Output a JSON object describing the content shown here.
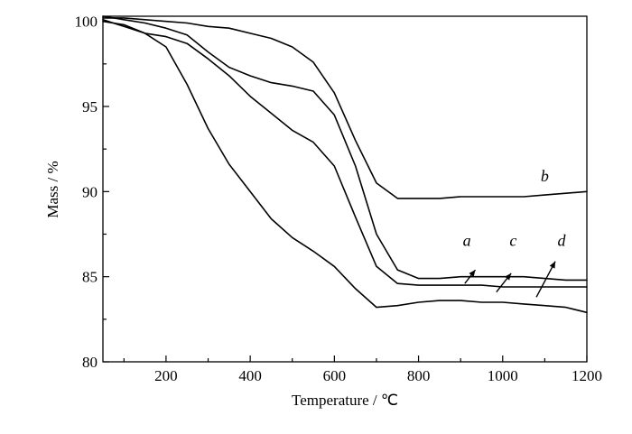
{
  "chart_data": {
    "type": "line",
    "title": "",
    "xlabel": "Temperature / ℃",
    "ylabel": "Mass / %",
    "xlim": [
      50,
      1200
    ],
    "ylim": [
      80,
      100.3
    ],
    "xticks": [
      200,
      400,
      600,
      800,
      1000,
      1200
    ],
    "yticks": [
      80,
      85,
      90,
      95,
      100
    ],
    "grid": false,
    "legend": "none",
    "series": [
      {
        "name": "a",
        "x": [
          50,
          100,
          150,
          200,
          250,
          300,
          350,
          400,
          450,
          500,
          550,
          600,
          650,
          700,
          750,
          800,
          850,
          900,
          950,
          1000,
          1050,
          1100,
          1150,
          1200
        ],
        "y": [
          100.3,
          100.1,
          99.9,
          99.6,
          99.2,
          98.2,
          97.3,
          96.8,
          96.4,
          96.2,
          95.9,
          94.5,
          91.5,
          87.5,
          85.4,
          84.9,
          84.9,
          85.0,
          85.0,
          85.0,
          85.0,
          84.9,
          84.8,
          84.8
        ]
      },
      {
        "name": "b",
        "x": [
          50,
          100,
          150,
          200,
          250,
          300,
          350,
          400,
          450,
          500,
          550,
          600,
          650,
          700,
          750,
          800,
          850,
          900,
          950,
          1000,
          1050,
          1100,
          1150,
          1200
        ],
        "y": [
          100.2,
          100.2,
          100.1,
          100.0,
          99.9,
          99.7,
          99.6,
          99.3,
          99.0,
          98.5,
          97.6,
          95.8,
          93.0,
          90.5,
          89.6,
          89.6,
          89.6,
          89.7,
          89.7,
          89.7,
          89.7,
          89.8,
          89.9,
          90.0
        ]
      },
      {
        "name": "c",
        "x": [
          50,
          100,
          150,
          200,
          250,
          300,
          350,
          400,
          450,
          500,
          550,
          600,
          650,
          700,
          750,
          800,
          850,
          900,
          950,
          1000,
          1050,
          1100,
          1150,
          1200
        ],
        "y": [
          100.0,
          99.8,
          99.3,
          99.1,
          98.7,
          97.8,
          96.8,
          95.6,
          94.6,
          93.6,
          92.9,
          91.5,
          88.5,
          85.6,
          84.6,
          84.5,
          84.5,
          84.5,
          84.5,
          84.4,
          84.4,
          84.4,
          84.4,
          84.4
        ]
      },
      {
        "name": "d",
        "x": [
          50,
          100,
          150,
          200,
          250,
          300,
          350,
          400,
          450,
          500,
          550,
          600,
          650,
          700,
          750,
          800,
          850,
          900,
          950,
          1000,
          1050,
          1100,
          1150,
          1200
        ],
        "y": [
          100.1,
          99.7,
          99.3,
          98.5,
          96.3,
          93.7,
          91.6,
          90.0,
          88.4,
          87.3,
          86.5,
          85.6,
          84.3,
          83.2,
          83.3,
          83.5,
          83.6,
          83.6,
          83.5,
          83.5,
          83.4,
          83.3,
          83.2,
          82.9
        ]
      }
    ],
    "annotations": [
      {
        "label": "b",
        "x": 1100,
        "y": 90.6,
        "arrow": null
      },
      {
        "label": "a",
        "x": 915,
        "y": 86.8,
        "arrow": {
          "from": [
            910,
            84.6
          ],
          "to": [
            935,
            85.4
          ]
        }
      },
      {
        "label": "c",
        "x": 1025,
        "y": 86.8,
        "arrow": {
          "from": [
            985,
            84.1
          ],
          "to": [
            1020,
            85.2
          ]
        }
      },
      {
        "label": "d",
        "x": 1140,
        "y": 86.8,
        "arrow": {
          "from": [
            1080,
            83.8
          ],
          "to": [
            1125,
            85.9
          ]
        }
      }
    ]
  }
}
